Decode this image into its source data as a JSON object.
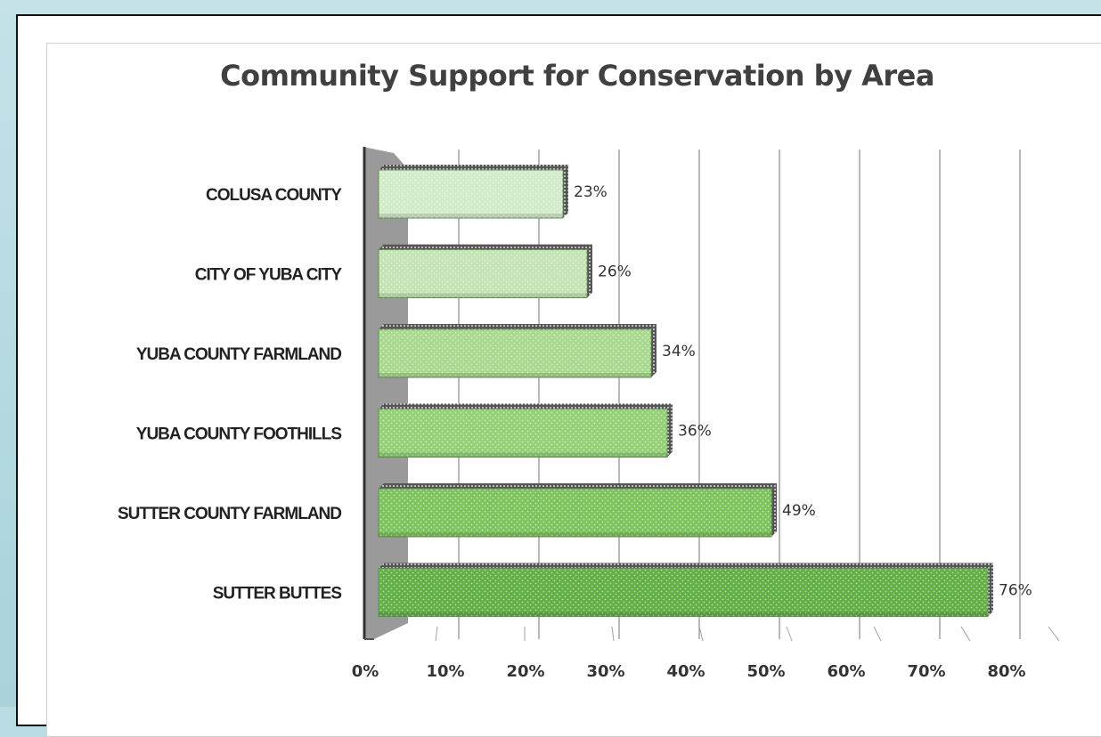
{
  "chart_data": {
    "type": "bar",
    "orientation": "horizontal",
    "title": "Community Support for Conservation by Area",
    "categories": [
      "COLUSA COUNTY",
      "CITY OF YUBA CITY",
      "YUBA COUNTY FARMLAND",
      "YUBA COUNTY FOOTHILLS",
      "SUTTER COUNTY FARMLAND",
      "SUTTER BUTTES"
    ],
    "values": [
      23,
      26,
      34,
      36,
      49,
      76
    ],
    "value_labels": [
      "23%",
      "26%",
      "34%",
      "36%",
      "49%",
      "76%"
    ],
    "xlim": [
      0,
      80
    ],
    "x_ticks": [
      0,
      10,
      20,
      30,
      40,
      50,
      60,
      70,
      80
    ],
    "x_tick_labels": [
      "0%",
      "10%",
      "20%",
      "30%",
      "40%",
      "50%",
      "60%",
      "70%",
      "80%"
    ],
    "grid": true,
    "legend": "none",
    "bar_colors": [
      "#d3ebc9",
      "#c4e4b5",
      "#a9d98e",
      "#94d076",
      "#7dc45e",
      "#62b046"
    ]
  }
}
